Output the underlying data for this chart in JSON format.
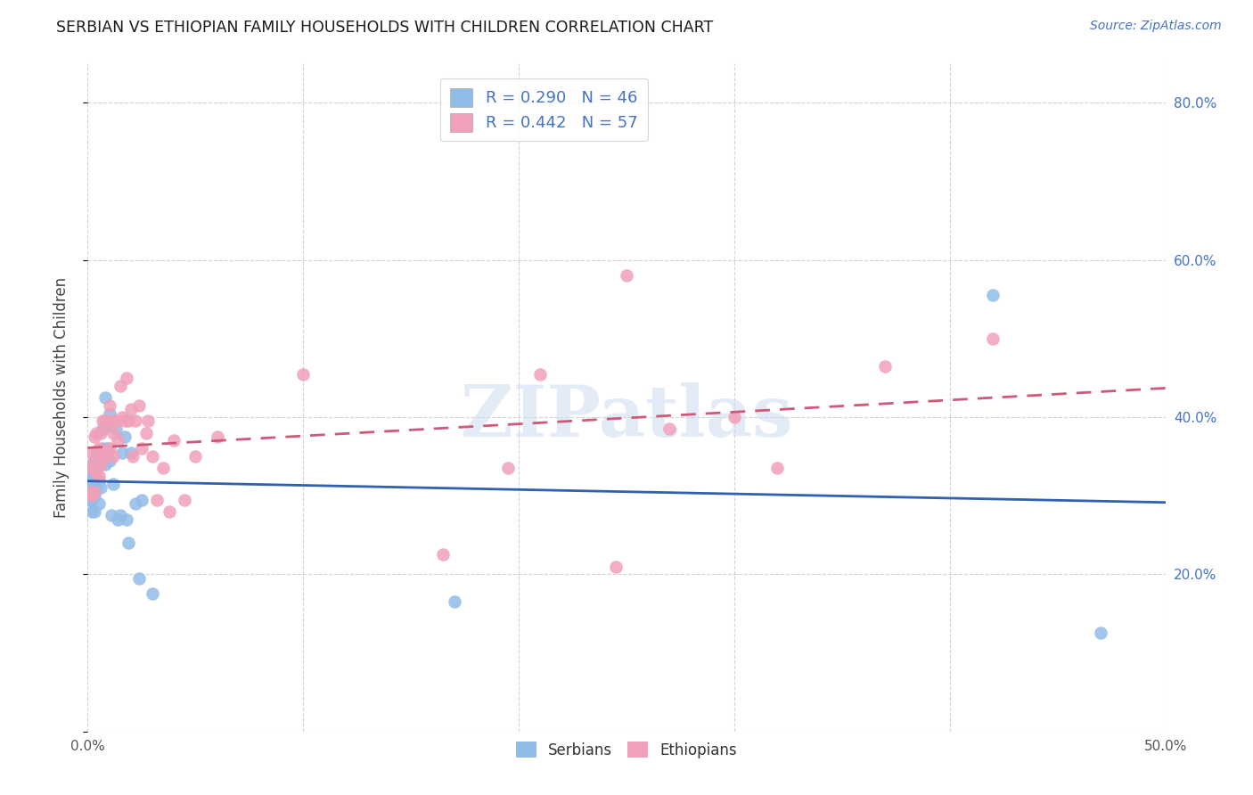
{
  "title": "SERBIAN VS ETHIOPIAN FAMILY HOUSEHOLDS WITH CHILDREN CORRELATION CHART",
  "source": "Source: ZipAtlas.com",
  "ylabel": "Family Households with Children",
  "xlim": [
    0.0,
    0.5
  ],
  "ylim": [
    0.0,
    0.85
  ],
  "xtick_positions": [
    0.0,
    0.1,
    0.2,
    0.3,
    0.4,
    0.5
  ],
  "xticklabels": [
    "0.0%",
    "",
    "",
    "",
    "",
    "50.0%"
  ],
  "ytick_positions": [
    0.0,
    0.2,
    0.4,
    0.6,
    0.8
  ],
  "right_yticklabels": [
    "",
    "20.0%",
    "40.0%",
    "60.0%",
    "80.0%"
  ],
  "watermark": "ZIPatlas",
  "legend_serbian_R": 0.29,
  "legend_serbian_N": 46,
  "legend_ethiopian_R": 0.442,
  "legend_ethiopian_N": 57,
  "serbian_color": "#92bce8",
  "ethiopian_color": "#f0a0b8",
  "serbian_line_color": "#3060b0",
  "ethiopian_line_color": "#d05878",
  "background_color": "#ffffff",
  "grid_color": "#c8c8c8",
  "title_color": "#1a1a1a",
  "right_ytick_color": "#4472c4",
  "axis_tick_color": "#555555",
  "serbians_x": [
    0.001,
    0.001,
    0.001,
    0.002,
    0.002,
    0.002,
    0.002,
    0.002,
    0.003,
    0.003,
    0.003,
    0.003,
    0.003,
    0.004,
    0.004,
    0.004,
    0.005,
    0.005,
    0.005,
    0.006,
    0.006,
    0.007,
    0.007,
    0.008,
    0.008,
    0.009,
    0.009,
    0.01,
    0.01,
    0.011,
    0.012,
    0.013,
    0.014,
    0.015,
    0.016,
    0.017,
    0.018,
    0.019,
    0.02,
    0.022,
    0.024,
    0.025,
    0.03,
    0.17,
    0.42,
    0.47
  ],
  "serbians_y": [
    0.325,
    0.31,
    0.295,
    0.34,
    0.325,
    0.31,
    0.295,
    0.28,
    0.345,
    0.33,
    0.315,
    0.3,
    0.28,
    0.355,
    0.335,
    0.31,
    0.345,
    0.32,
    0.29,
    0.34,
    0.31,
    0.385,
    0.36,
    0.425,
    0.34,
    0.39,
    0.36,
    0.405,
    0.345,
    0.275,
    0.315,
    0.385,
    0.27,
    0.275,
    0.355,
    0.375,
    0.27,
    0.24,
    0.355,
    0.29,
    0.195,
    0.295,
    0.175,
    0.165,
    0.555,
    0.125
  ],
  "ethiopians_x": [
    0.001,
    0.001,
    0.002,
    0.002,
    0.003,
    0.003,
    0.003,
    0.004,
    0.004,
    0.005,
    0.005,
    0.006,
    0.006,
    0.007,
    0.007,
    0.008,
    0.008,
    0.009,
    0.009,
    0.01,
    0.01,
    0.011,
    0.012,
    0.012,
    0.013,
    0.014,
    0.015,
    0.016,
    0.017,
    0.018,
    0.019,
    0.02,
    0.021,
    0.022,
    0.024,
    0.025,
    0.027,
    0.028,
    0.03,
    0.032,
    0.035,
    0.038,
    0.04,
    0.045,
    0.05,
    0.06,
    0.1,
    0.165,
    0.195,
    0.21,
    0.245,
    0.25,
    0.27,
    0.3,
    0.32,
    0.37,
    0.42
  ],
  "ethiopians_y": [
    0.335,
    0.305,
    0.355,
    0.3,
    0.375,
    0.345,
    0.305,
    0.38,
    0.33,
    0.36,
    0.325,
    0.38,
    0.34,
    0.395,
    0.355,
    0.395,
    0.35,
    0.39,
    0.355,
    0.415,
    0.36,
    0.395,
    0.38,
    0.35,
    0.395,
    0.37,
    0.44,
    0.4,
    0.395,
    0.45,
    0.395,
    0.41,
    0.35,
    0.395,
    0.415,
    0.36,
    0.38,
    0.395,
    0.35,
    0.295,
    0.335,
    0.28,
    0.37,
    0.295,
    0.35,
    0.375,
    0.455,
    0.225,
    0.335,
    0.455,
    0.21,
    0.58,
    0.385,
    0.4,
    0.335,
    0.465,
    0.5
  ]
}
